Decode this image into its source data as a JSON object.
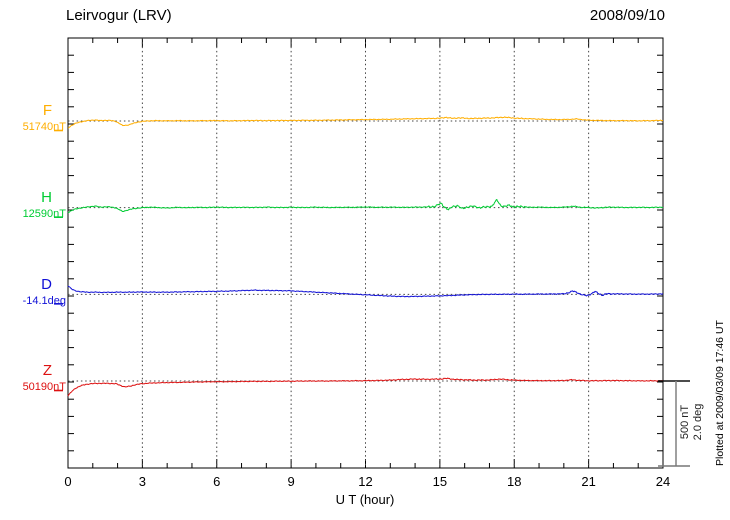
{
  "header": {
    "title": "Leirvogur (LRV)",
    "date": "2008/09/10"
  },
  "xaxis": {
    "label": "U T (hour)"
  },
  "scalebar": {
    "nt_label": "500 nT",
    "deg_label": "2.0 deg"
  },
  "footer": {
    "note": "Plotted at 2009/03/09 17:46 UT"
  },
  "chart_data": {
    "type": "line",
    "title": "Leirvogur (LRV)",
    "date": "2008/09/10",
    "xlabel": "U T (hour)",
    "x_range": [
      0,
      24
    ],
    "x_ticks": [
      0,
      3,
      6,
      9,
      12,
      15,
      18,
      21,
      24
    ],
    "x_minor_step": 1,
    "grid": "dotted vertical at 3h intervals, dotted horizontal at each trace baseline",
    "legend_position": "left margin, one colored label per trace",
    "scale": {
      "nT_per_division": 500,
      "deg_per_division": 2.0
    },
    "annotation": "Plotted at 2009/03/09 17:46 UT",
    "series": [
      {
        "name": "F",
        "reference": "51740nT",
        "unit": "nT",
        "color": "#ffae00",
        "points": [
          [
            0,
            -40
          ],
          [
            0.15,
            -25
          ],
          [
            0.3,
            -14
          ],
          [
            0.5,
            -5
          ],
          [
            0.7,
            0
          ],
          [
            0.9,
            4
          ],
          [
            1.1,
            6
          ],
          [
            1.3,
            2
          ],
          [
            1.5,
            4
          ],
          [
            1.7,
            3
          ],
          [
            1.9,
            -1
          ],
          [
            2.05,
            -12
          ],
          [
            2.2,
            -26
          ],
          [
            2.4,
            -24
          ],
          [
            2.6,
            -15
          ],
          [
            2.8,
            -7
          ],
          [
            3,
            -2
          ],
          [
            3.3,
            1
          ],
          [
            3.6,
            2
          ],
          [
            4,
            1
          ],
          [
            4.5,
            2
          ],
          [
            5,
            1
          ],
          [
            5.5,
            2
          ],
          [
            6,
            2
          ],
          [
            6.5,
            1
          ],
          [
            7,
            2
          ],
          [
            7.5,
            3
          ],
          [
            8,
            2
          ],
          [
            8.5,
            3
          ],
          [
            9,
            3
          ],
          [
            9.5,
            4
          ],
          [
            10,
            4
          ],
          [
            10.5,
            5
          ],
          [
            11,
            6
          ],
          [
            11.5,
            7
          ],
          [
            12,
            8
          ],
          [
            12.5,
            9
          ],
          [
            13,
            10
          ],
          [
            13.5,
            12
          ],
          [
            14,
            13
          ],
          [
            14.5,
            14
          ],
          [
            15,
            16
          ],
          [
            15.25,
            21
          ],
          [
            15.5,
            15
          ],
          [
            15.75,
            18
          ],
          [
            16,
            16
          ],
          [
            16.3,
            14
          ],
          [
            16.6,
            16
          ],
          [
            17,
            17
          ],
          [
            17.3,
            19
          ],
          [
            17.6,
            22
          ],
          [
            17.9,
            18
          ],
          [
            18.2,
            15
          ],
          [
            18.6,
            13
          ],
          [
            19,
            11
          ],
          [
            19.4,
            9
          ],
          [
            19.8,
            8
          ],
          [
            20.2,
            9
          ],
          [
            20.5,
            12
          ],
          [
            20.8,
            7
          ],
          [
            21.1,
            4
          ],
          [
            21.5,
            3
          ],
          [
            22,
            2
          ],
          [
            22.5,
            2
          ],
          [
            23,
            1
          ],
          [
            23.5,
            2
          ],
          [
            24,
            4
          ]
        ]
      },
      {
        "name": "H",
        "reference": "12590nT",
        "unit": "nT",
        "color": "#00cc33",
        "points": [
          [
            0,
            -28
          ],
          [
            0.15,
            -16
          ],
          [
            0.3,
            -8
          ],
          [
            0.5,
            -2
          ],
          [
            0.7,
            2
          ],
          [
            0.9,
            6
          ],
          [
            1.1,
            9
          ],
          [
            1.3,
            3
          ],
          [
            1.5,
            5
          ],
          [
            1.7,
            4
          ],
          [
            1.9,
            0
          ],
          [
            2.05,
            -10
          ],
          [
            2.2,
            -22
          ],
          [
            2.4,
            -14
          ],
          [
            2.6,
            -7
          ],
          [
            2.8,
            -3
          ],
          [
            3,
            0
          ],
          [
            3.3,
            3
          ],
          [
            3.6,
            1
          ],
          [
            4,
            -2
          ],
          [
            4.4,
            2
          ],
          [
            4.8,
            0
          ],
          [
            5.2,
            2
          ],
          [
            5.6,
            1
          ],
          [
            6,
            3
          ],
          [
            6.5,
            1
          ],
          [
            7,
            2
          ],
          [
            7.5,
            1
          ],
          [
            8,
            3
          ],
          [
            8.5,
            1
          ],
          [
            9,
            2
          ],
          [
            9.5,
            1
          ],
          [
            10,
            3
          ],
          [
            10.5,
            1
          ],
          [
            11,
            2
          ],
          [
            11.5,
            2
          ],
          [
            12,
            4
          ],
          [
            12.5,
            2
          ],
          [
            13,
            3
          ],
          [
            13.5,
            2
          ],
          [
            14,
            3
          ],
          [
            14.5,
            4
          ],
          [
            14.8,
            7
          ],
          [
            15.05,
            25
          ],
          [
            15.2,
            2
          ],
          [
            15.35,
            -12
          ],
          [
            15.5,
            6
          ],
          [
            15.7,
            12
          ],
          [
            15.9,
            -6
          ],
          [
            16.1,
            4
          ],
          [
            16.35,
            8
          ],
          [
            16.6,
            0
          ],
          [
            16.85,
            4
          ],
          [
            17.1,
            8
          ],
          [
            17.3,
            45
          ],
          [
            17.45,
            12
          ],
          [
            17.6,
            6
          ],
          [
            17.8,
            14
          ],
          [
            18,
            4
          ],
          [
            18.3,
            7
          ],
          [
            18.6,
            2
          ],
          [
            19,
            3
          ],
          [
            19.5,
            1
          ],
          [
            20,
            3
          ],
          [
            20.4,
            8
          ],
          [
            20.7,
            2
          ],
          [
            21,
            1
          ],
          [
            21.3,
            -2
          ],
          [
            21.7,
            2
          ],
          [
            22,
            3
          ],
          [
            22.5,
            1
          ],
          [
            23,
            2
          ],
          [
            23.5,
            1
          ],
          [
            24,
            3
          ]
        ]
      },
      {
        "name": "D",
        "reference": "-14.1deg",
        "unit": "deg",
        "color": "#1111d6",
        "points": [
          [
            0,
            0.2
          ],
          [
            0.15,
            0.12
          ],
          [
            0.3,
            0.08
          ],
          [
            0.5,
            0.06
          ],
          [
            0.75,
            0.05
          ],
          [
            1,
            0.05
          ],
          [
            1.5,
            0.045
          ],
          [
            2,
            0.05
          ],
          [
            2.5,
            0.05
          ],
          [
            3,
            0.055
          ],
          [
            3.5,
            0.05
          ],
          [
            4,
            0.05
          ],
          [
            4.5,
            0.055
          ],
          [
            5,
            0.06
          ],
          [
            5.5,
            0.065
          ],
          [
            6,
            0.07
          ],
          [
            6.5,
            0.075
          ],
          [
            7,
            0.085
          ],
          [
            7.5,
            0.095
          ],
          [
            8,
            0.09
          ],
          [
            8.5,
            0.085
          ],
          [
            9,
            0.08
          ],
          [
            9.5,
            0.065
          ],
          [
            10,
            0.05
          ],
          [
            10.5,
            0.035
          ],
          [
            11,
            0.02
          ],
          [
            11.5,
            0.005
          ],
          [
            12,
            -0.01
          ],
          [
            12.5,
            -0.025
          ],
          [
            13,
            -0.04
          ],
          [
            13.5,
            -0.05
          ],
          [
            14,
            -0.048
          ],
          [
            14.5,
            -0.042
          ],
          [
            15,
            -0.035
          ],
          [
            15.5,
            -0.025
          ],
          [
            16,
            -0.012
          ],
          [
            16.5,
            -0.005
          ],
          [
            17,
            0
          ],
          [
            17.5,
            0.002
          ],
          [
            18,
            0.004
          ],
          [
            18.5,
            0.004
          ],
          [
            19,
            0.006
          ],
          [
            19.5,
            0.008
          ],
          [
            20,
            0.012
          ],
          [
            20.2,
            0.04
          ],
          [
            20.35,
            0.075
          ],
          [
            20.5,
            0.05
          ],
          [
            20.65,
            0.01
          ],
          [
            20.8,
            -0.02
          ],
          [
            20.95,
            -0.03
          ],
          [
            21.1,
            0.01
          ],
          [
            21.25,
            0.065
          ],
          [
            21.4,
            0.02
          ],
          [
            21.55,
            -0.02
          ],
          [
            21.7,
            0.01
          ],
          [
            22,
            0.012
          ],
          [
            22.5,
            0.008
          ],
          [
            23,
            0.004
          ],
          [
            23.5,
            0.006
          ],
          [
            24,
            0.01
          ]
        ]
      },
      {
        "name": "Z",
        "reference": "50190nT",
        "unit": "nT",
        "color": "#dd1111",
        "points": [
          [
            0,
            -85
          ],
          [
            0.15,
            -60
          ],
          [
            0.3,
            -42
          ],
          [
            0.5,
            -28
          ],
          [
            0.7,
            -20
          ],
          [
            0.9,
            -16
          ],
          [
            1.1,
            -14
          ],
          [
            1.4,
            -13
          ],
          [
            1.7,
            -14
          ],
          [
            1.95,
            -16
          ],
          [
            2.1,
            -25
          ],
          [
            2.3,
            -34
          ],
          [
            2.5,
            -30
          ],
          [
            2.7,
            -22
          ],
          [
            2.9,
            -17
          ],
          [
            3.2,
            -13
          ],
          [
            3.5,
            -11
          ],
          [
            4,
            -9
          ],
          [
            4.5,
            -8
          ],
          [
            5,
            -6
          ],
          [
            5.5,
            -5
          ],
          [
            6,
            -4
          ],
          [
            6.5,
            -4
          ],
          [
            7,
            -3
          ],
          [
            7.5,
            -2
          ],
          [
            8,
            -2
          ],
          [
            8.5,
            -1
          ],
          [
            9,
            -1
          ],
          [
            9.5,
            0
          ],
          [
            10,
            0
          ],
          [
            10.5,
            0
          ],
          [
            11,
            1
          ],
          [
            11.5,
            1
          ],
          [
            12,
            2
          ],
          [
            12.5,
            3
          ],
          [
            13,
            5
          ],
          [
            13.5,
            9
          ],
          [
            14,
            11
          ],
          [
            14.5,
            10
          ],
          [
            15,
            11
          ],
          [
            15.3,
            15
          ],
          [
            15.6,
            9
          ],
          [
            16,
            7
          ],
          [
            16.5,
            5
          ],
          [
            17,
            6
          ],
          [
            17.4,
            11
          ],
          [
            17.7,
            8
          ],
          [
            18,
            5
          ],
          [
            18.5,
            3
          ],
          [
            19,
            2
          ],
          [
            19.5,
            2
          ],
          [
            20,
            3
          ],
          [
            20.3,
            7
          ],
          [
            20.6,
            4
          ],
          [
            21,
            1
          ],
          [
            21.5,
            2
          ],
          [
            22,
            3
          ],
          [
            22.5,
            2
          ],
          [
            23,
            1
          ],
          [
            23.5,
            1
          ],
          [
            24,
            2
          ]
        ]
      }
    ]
  }
}
